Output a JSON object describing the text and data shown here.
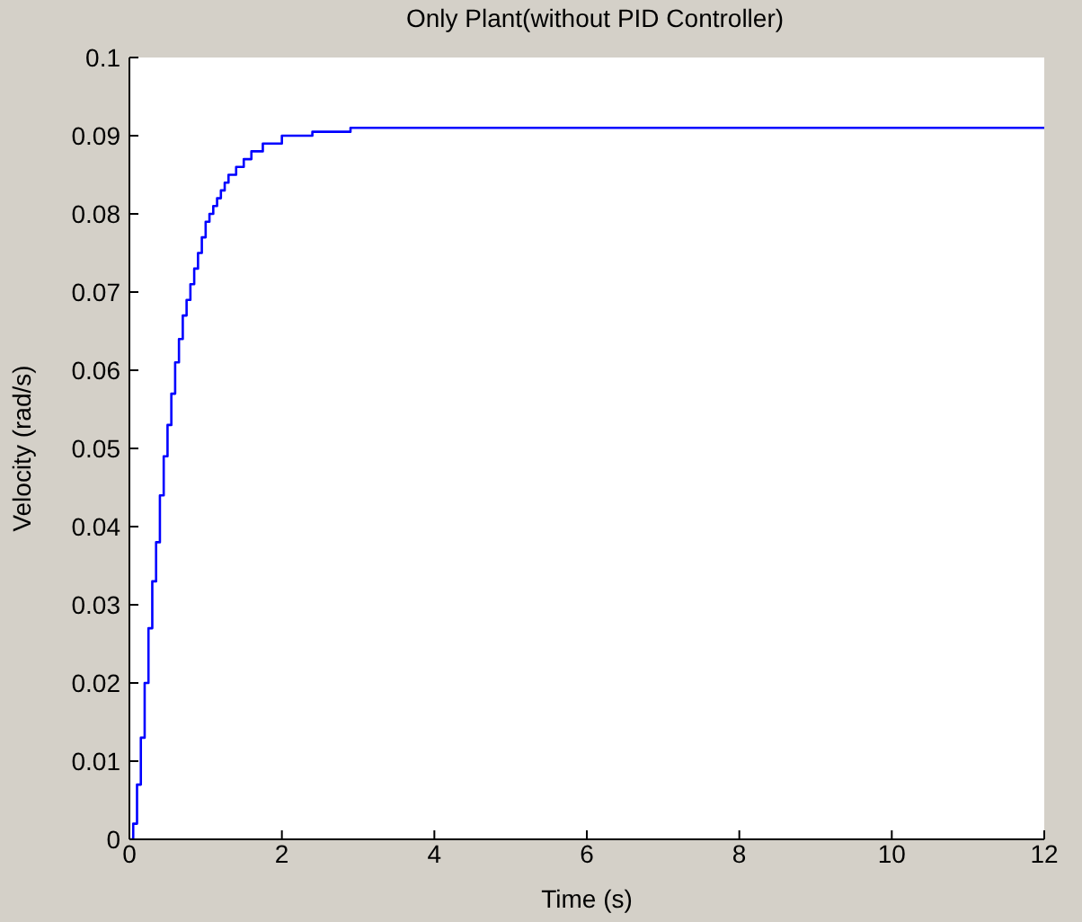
{
  "chart_data": {
    "type": "step",
    "title": "Only Plant(without PID Controller)",
    "xlabel": "Time (s)",
    "ylabel": "Velocity (rad/s)",
    "x": [
      0,
      0.05,
      0.1,
      0.15,
      0.2,
      0.25,
      0.3,
      0.35,
      0.4,
      0.45,
      0.5,
      0.55,
      0.6,
      0.65,
      0.7,
      0.75,
      0.8,
      0.85,
      0.9,
      0.95,
      1.0,
      1.05,
      1.1,
      1.15,
      1.2,
      1.25,
      1.3,
      1.4,
      1.5,
      1.6,
      1.75,
      2.0,
      2.4,
      2.9,
      12
    ],
    "series": [
      {
        "color": "#0000ff",
        "values": [
          0,
          0.002,
          0.007,
          0.013,
          0.02,
          0.027,
          0.033,
          0.038,
          0.044,
          0.049,
          0.053,
          0.057,
          0.061,
          0.064,
          0.067,
          0.069,
          0.071,
          0.073,
          0.075,
          0.077,
          0.079,
          0.08,
          0.081,
          0.082,
          0.083,
          0.084,
          0.085,
          0.086,
          0.087,
          0.088,
          0.089,
          0.09,
          0.0905,
          0.091,
          0.091
        ]
      }
    ],
    "xlim": [
      0,
      12
    ],
    "xticks": [
      0,
      2,
      4,
      6,
      8,
      10,
      12
    ],
    "ylim": [
      0,
      0.1
    ],
    "yticks": [
      0,
      0.01,
      0.02,
      0.03,
      0.04,
      0.05,
      0.06,
      0.07,
      0.08,
      0.09,
      0.1
    ],
    "grid": false,
    "legend": false,
    "marker": "none",
    "line_style": "solid"
  }
}
